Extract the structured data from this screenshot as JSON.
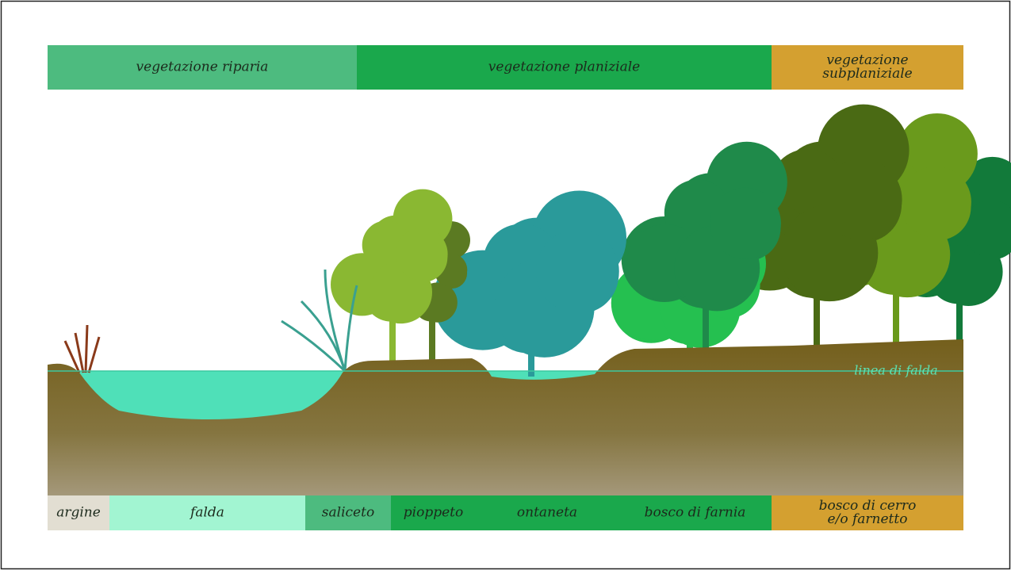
{
  "top_bands": [
    {
      "lines": [
        "vegetazione riparia"
      ]
    },
    {
      "lines": [
        "vegetazione planiziale"
      ]
    },
    {
      "lines": [
        "vegetazione",
        "subplaniziale"
      ]
    }
  ],
  "bottom_bands": [
    {
      "lines": [
        "argine"
      ]
    },
    {
      "lines": [
        "falda"
      ]
    },
    {
      "lines": [
        "saliceto"
      ]
    },
    {
      "lines": [
        "pioppeto"
      ]
    },
    {
      "lines": [
        "ontaneta"
      ]
    },
    {
      "lines": [
        "bosco di farnia"
      ]
    },
    {
      "lines": [
        "bosco di cerro",
        "e/o farnetto"
      ]
    }
  ],
  "water_line": {
    "label": "linea di falda"
  }
}
